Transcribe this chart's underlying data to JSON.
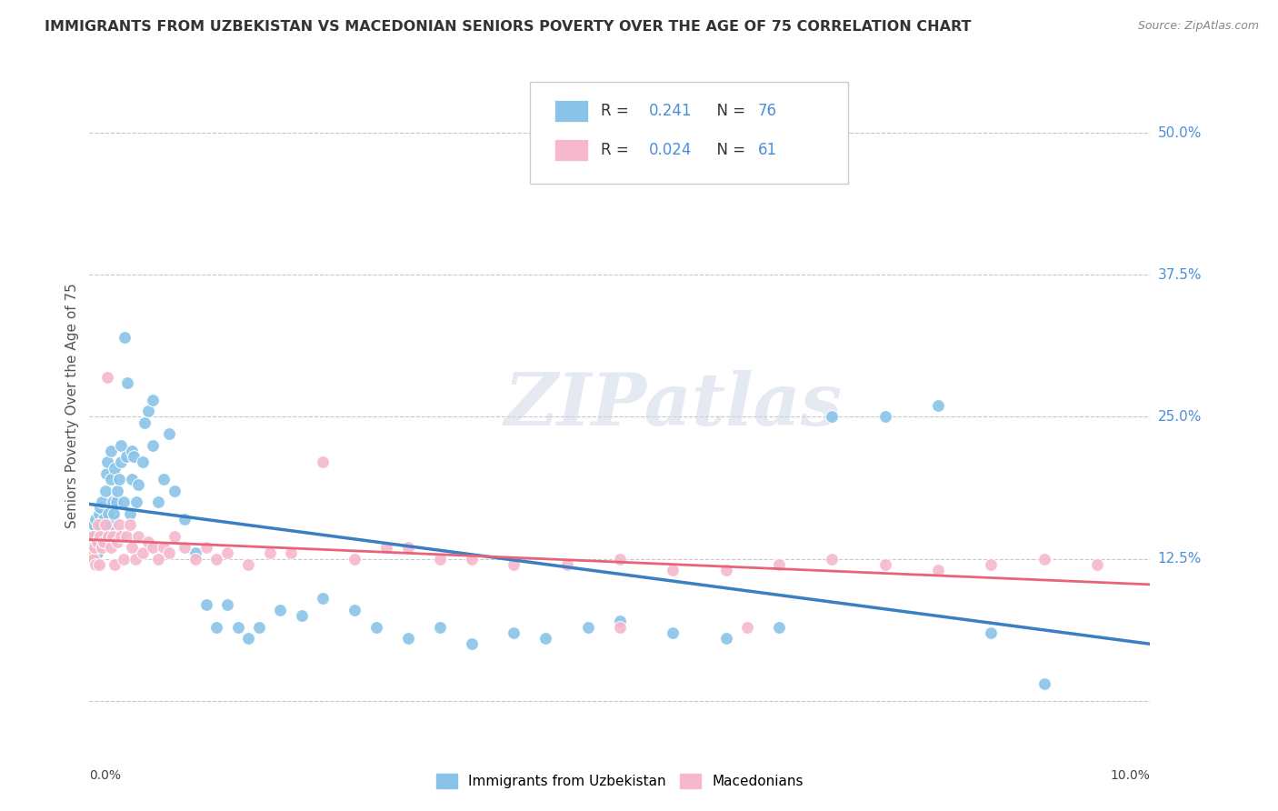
{
  "title": "IMMIGRANTS FROM UZBEKISTAN VS MACEDONIAN SENIORS POVERTY OVER THE AGE OF 75 CORRELATION CHART",
  "source": "Source: ZipAtlas.com",
  "ylabel": "Seniors Poverty Over the Age of 75",
  "xlim": [
    0.0,
    0.1
  ],
  "ylim": [
    -0.04,
    0.56
  ],
  "yticks": [
    0.0,
    0.125,
    0.25,
    0.375,
    0.5
  ],
  "ytick_labels": [
    "",
    "12.5%",
    "25.0%",
    "37.5%",
    "50.0%"
  ],
  "grid_color": "#c8c8c8",
  "bg_color": "#ffffff",
  "blue_color": "#89c4e8",
  "pink_color": "#f5b8cc",
  "blue_line_color": "#3a7fc1",
  "pink_line_color": "#e8637a",
  "dashed_line_color": "#a0c0e0",
  "legend_label_blue": "Immigrants from Uzbekistan",
  "legend_label_pink": "Macedonians",
  "R_blue": "0.241",
  "N_blue": "76",
  "R_pink": "0.024",
  "N_pink": "61",
  "watermark": "ZIPatlas",
  "blue_scatter_x": [
    0.0002,
    0.0003,
    0.0004,
    0.0005,
    0.0006,
    0.0007,
    0.0008,
    0.0009,
    0.001,
    0.001,
    0.0012,
    0.0013,
    0.0014,
    0.0015,
    0.0016,
    0.0017,
    0.0018,
    0.0019,
    0.002,
    0.002,
    0.0022,
    0.0023,
    0.0024,
    0.0025,
    0.0026,
    0.0027,
    0.0028,
    0.003,
    0.003,
    0.0032,
    0.0033,
    0.0035,
    0.0036,
    0.0038,
    0.004,
    0.004,
    0.0042,
    0.0044,
    0.0046,
    0.005,
    0.0052,
    0.0055,
    0.006,
    0.006,
    0.0065,
    0.007,
    0.0075,
    0.008,
    0.009,
    0.01,
    0.011,
    0.012,
    0.013,
    0.014,
    0.015,
    0.016,
    0.018,
    0.02,
    0.022,
    0.025,
    0.027,
    0.03,
    0.033,
    0.036,
    0.04,
    0.043,
    0.047,
    0.05,
    0.055,
    0.06,
    0.065,
    0.07,
    0.075,
    0.08,
    0.085,
    0.09
  ],
  "blue_scatter_y": [
    0.145,
    0.135,
    0.155,
    0.145,
    0.16,
    0.13,
    0.14,
    0.165,
    0.17,
    0.155,
    0.175,
    0.16,
    0.145,
    0.185,
    0.2,
    0.21,
    0.165,
    0.155,
    0.195,
    0.22,
    0.175,
    0.165,
    0.205,
    0.175,
    0.185,
    0.145,
    0.195,
    0.21,
    0.225,
    0.175,
    0.32,
    0.215,
    0.28,
    0.165,
    0.195,
    0.22,
    0.215,
    0.175,
    0.19,
    0.21,
    0.245,
    0.255,
    0.225,
    0.265,
    0.175,
    0.195,
    0.235,
    0.185,
    0.16,
    0.13,
    0.085,
    0.065,
    0.085,
    0.065,
    0.055,
    0.065,
    0.08,
    0.075,
    0.09,
    0.08,
    0.065,
    0.055,
    0.065,
    0.05,
    0.06,
    0.055,
    0.065,
    0.07,
    0.06,
    0.055,
    0.065,
    0.25,
    0.25,
    0.26,
    0.06,
    0.015
  ],
  "pink_scatter_x": [
    0.0002,
    0.0003,
    0.0004,
    0.0005,
    0.0006,
    0.0007,
    0.0008,
    0.0009,
    0.001,
    0.0012,
    0.0013,
    0.0015,
    0.0017,
    0.0018,
    0.002,
    0.0022,
    0.0024,
    0.0026,
    0.0028,
    0.003,
    0.0032,
    0.0035,
    0.0038,
    0.004,
    0.0043,
    0.0046,
    0.005,
    0.0055,
    0.006,
    0.0065,
    0.007,
    0.0075,
    0.008,
    0.009,
    0.01,
    0.011,
    0.012,
    0.013,
    0.015,
    0.017,
    0.019,
    0.022,
    0.025,
    0.028,
    0.03,
    0.033,
    0.036,
    0.04,
    0.045,
    0.05,
    0.055,
    0.06,
    0.065,
    0.07,
    0.075,
    0.08,
    0.085,
    0.09,
    0.095,
    0.05,
    0.062
  ],
  "pink_scatter_y": [
    0.13,
    0.145,
    0.125,
    0.135,
    0.12,
    0.14,
    0.155,
    0.12,
    0.145,
    0.135,
    0.14,
    0.155,
    0.285,
    0.145,
    0.135,
    0.145,
    0.12,
    0.14,
    0.155,
    0.145,
    0.125,
    0.145,
    0.155,
    0.135,
    0.125,
    0.145,
    0.13,
    0.14,
    0.135,
    0.125,
    0.135,
    0.13,
    0.145,
    0.135,
    0.125,
    0.135,
    0.125,
    0.13,
    0.12,
    0.13,
    0.13,
    0.21,
    0.125,
    0.135,
    0.135,
    0.125,
    0.125,
    0.12,
    0.12,
    0.125,
    0.115,
    0.115,
    0.12,
    0.125,
    0.12,
    0.115,
    0.12,
    0.125,
    0.12,
    0.065,
    0.065
  ]
}
